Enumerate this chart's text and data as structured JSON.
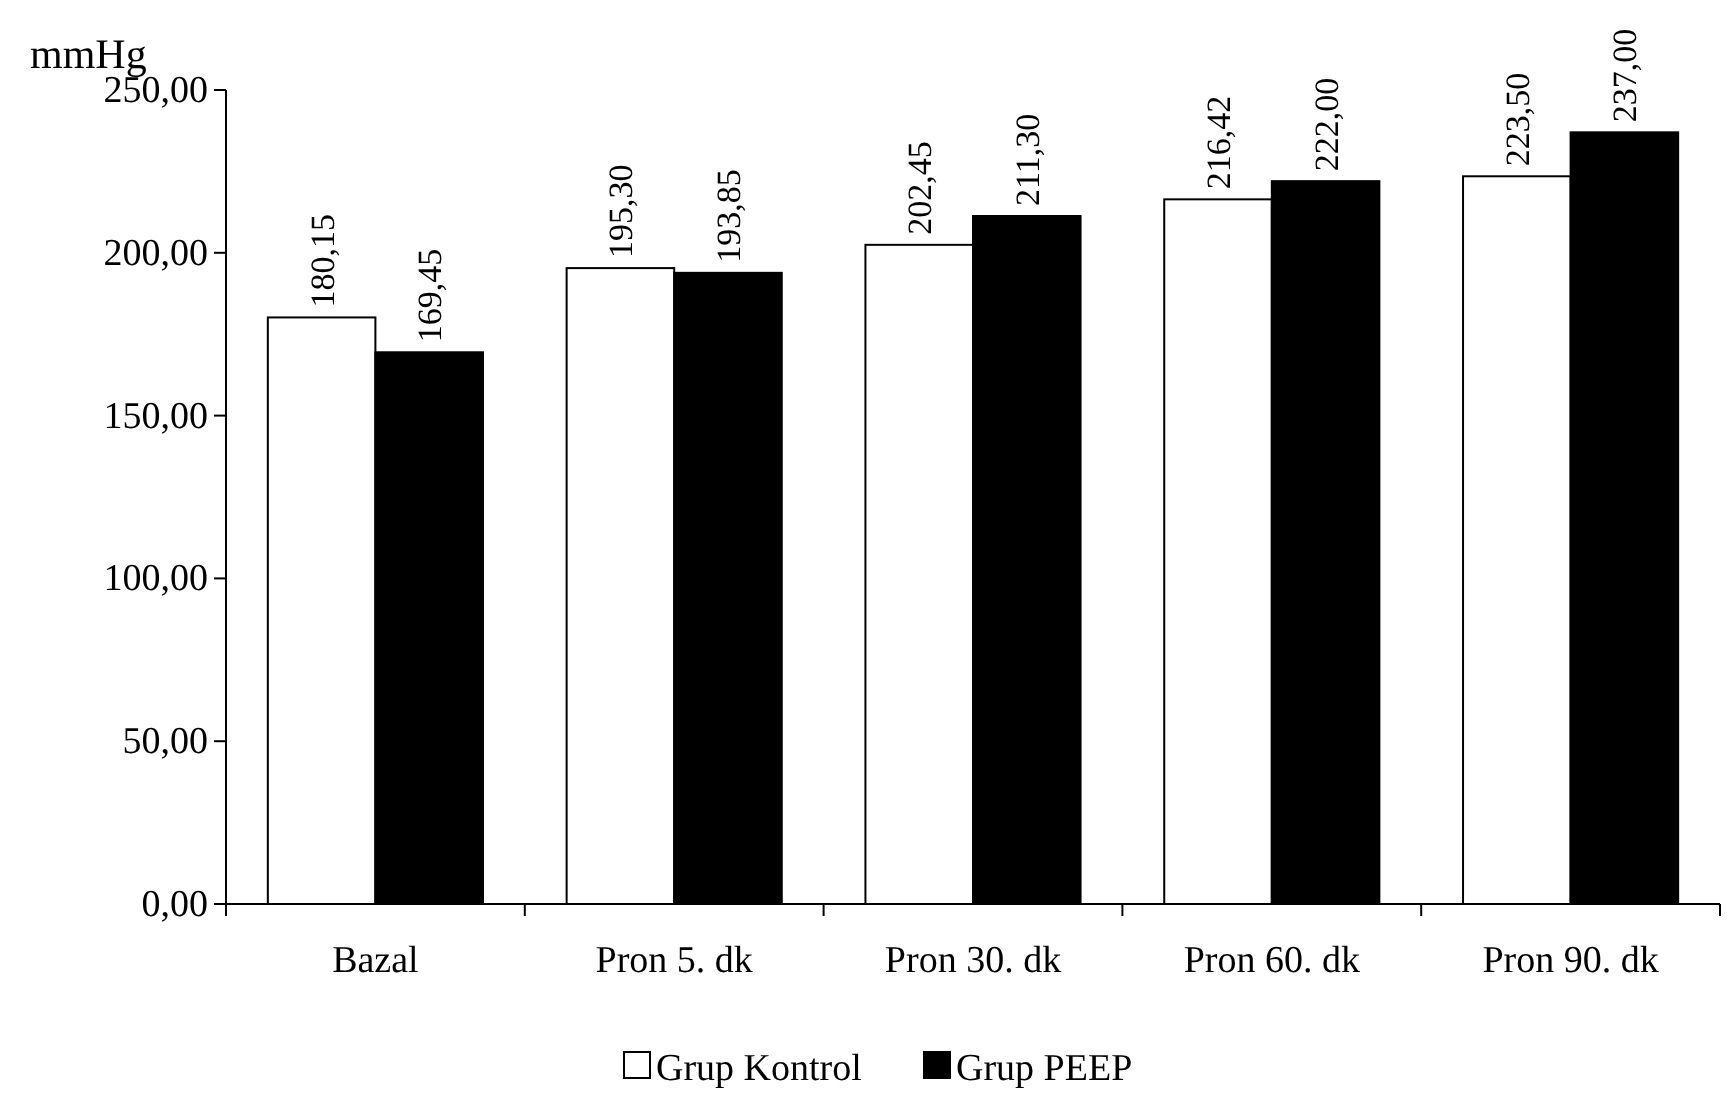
{
  "chart_data": {
    "type": "bar",
    "ylabel": "mmHg",
    "categories": [
      "Bazal",
      "Pron 5. dk",
      "Pron 30. dk",
      "Pron 60. dk",
      "Pron 90. dk"
    ],
    "series": [
      {
        "name": "Grup Kontrol",
        "color": "#ffffff",
        "values": [
          180.15,
          195.3,
          202.45,
          216.42,
          223.5
        ],
        "value_labels": [
          "180,15",
          "195,30",
          "202,45",
          "216,42",
          "223,50"
        ]
      },
      {
        "name": "Grup PEEP",
        "color": "#000000",
        "values": [
          169.45,
          193.85,
          211.3,
          222.0,
          237.0
        ],
        "value_labels": [
          "169,45",
          "193,85",
          "211,30",
          "222,00",
          "237,00"
        ]
      }
    ],
    "ylim": [
      0,
      250
    ],
    "yticks": [
      {
        "value": 0,
        "label": "0,00"
      },
      {
        "value": 50,
        "label": "50,00"
      },
      {
        "value": 100,
        "label": "100,00"
      },
      {
        "value": 150,
        "label": "150,00"
      },
      {
        "value": 200,
        "label": "200,00"
      },
      {
        "value": 250,
        "label": "250,00"
      }
    ],
    "grid": false,
    "legend": "bottom"
  }
}
